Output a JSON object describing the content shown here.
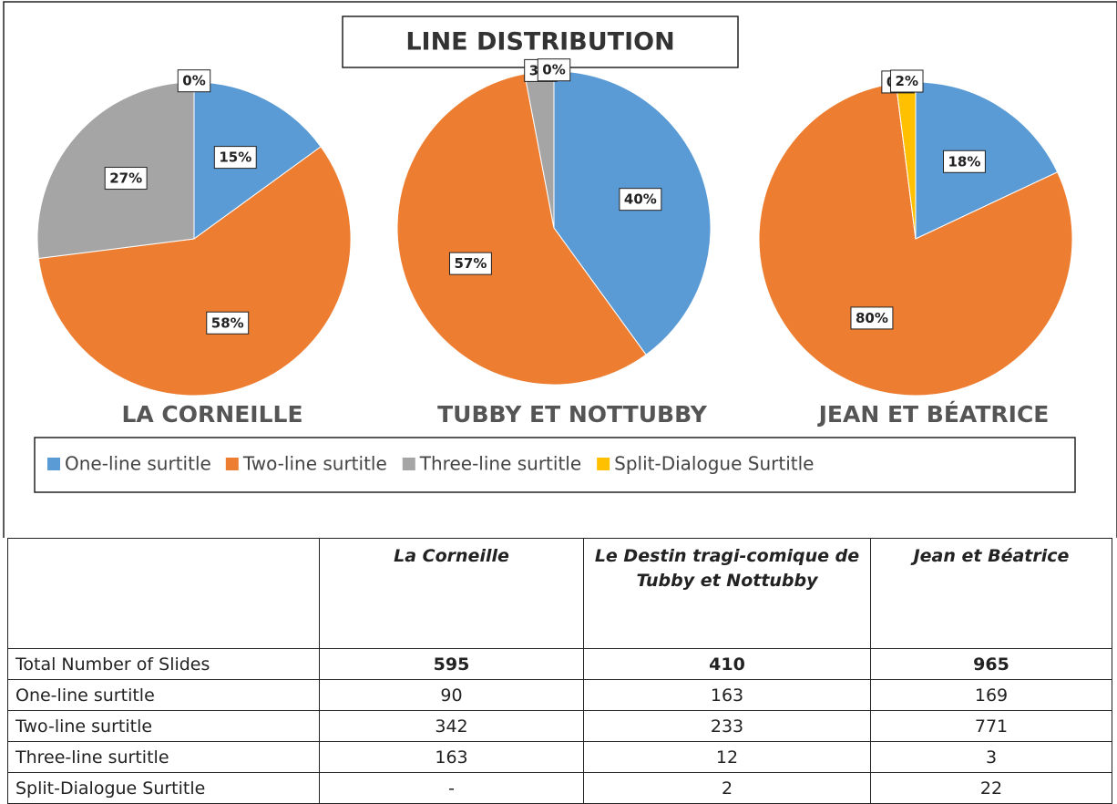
{
  "title": "LINE DISTRIBUTION",
  "chart_data": [
    {
      "type": "pie",
      "title": "LA CORNEILLE",
      "categories": [
        "One-line surtitle",
        "Two-line surtitle",
        "Three-line surtitle",
        "Split-Dialogue Surtitle"
      ],
      "values": [
        15,
        58,
        27,
        0
      ],
      "value_labels": [
        "15%",
        "58%",
        "27%",
        "0%"
      ],
      "colors": [
        "#5b9bd5",
        "#ed7d31",
        "#a5a5a5",
        "#ffc000"
      ]
    },
    {
      "type": "pie",
      "title": "TUBBY ET NOTTUBBY",
      "categories": [
        "One-line surtitle",
        "Two-line surtitle",
        "Three-line surtitle",
        "Split-Dialogue Surtitle"
      ],
      "values": [
        40,
        57,
        3,
        0
      ],
      "value_labels": [
        "40%",
        "57%",
        "3%",
        "0%"
      ],
      "colors": [
        "#5b9bd5",
        "#ed7d31",
        "#a5a5a5",
        "#ffc000"
      ]
    },
    {
      "type": "pie",
      "title": "JEAN ET BÉATRICE",
      "categories": [
        "One-line surtitle",
        "Two-line surtitle",
        "Three-line surtitle",
        "Split-Dialogue Surtitle"
      ],
      "values": [
        18,
        80,
        0,
        2
      ],
      "value_labels": [
        "18%",
        "80%",
        "0%",
        "2%"
      ],
      "colors": [
        "#5b9bd5",
        "#ed7d31",
        "#a5a5a5",
        "#ffc000"
      ]
    }
  ],
  "table": {
    "header": [
      "La Corneille",
      "Le Destin tragi-comique de Tubby et Nottubby",
      "Jean et Béatrice"
    ],
    "rows": [
      [
        "Total Number of Slides",
        595,
        410,
        965
      ],
      [
        "One-line surtitle",
        90,
        163,
        169
      ],
      [
        "Two-line surtitle",
        342,
        233,
        771
      ],
      [
        "Three-line surtitle",
        163,
        12,
        3
      ],
      [
        "Split-Dialogue Surtitle",
        "-",
        2,
        22
      ]
    ]
  }
}
